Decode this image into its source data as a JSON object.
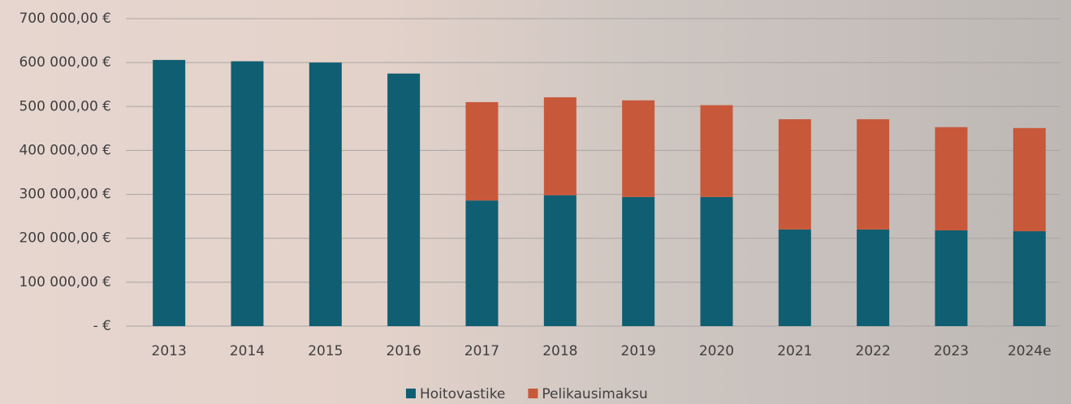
{
  "chart_data": {
    "type": "stacked-bar",
    "categories": [
      "2013",
      "2014",
      "2015",
      "2016",
      "2017",
      "2018",
      "2019",
      "2020",
      "2021",
      "2022",
      "2023",
      "2024e"
    ],
    "series": [
      {
        "name": "Hoitovastike",
        "color": "#0f5e72",
        "values": [
          606000,
          603000,
          600000,
          575000,
          286000,
          298000,
          294000,
          294000,
          220000,
          220000,
          218000,
          216000
        ]
      },
      {
        "name": "Pelikausimaksu",
        "color": "#c8583a",
        "values": [
          null,
          null,
          null,
          null,
          224000,
          223000,
          220000,
          209000,
          251000,
          251000,
          235000,
          235000
        ]
      }
    ],
    "ylim": [
      0,
      700000
    ],
    "yticks": [
      {
        "value": 0,
        "label": "-  €"
      },
      {
        "value": 100000,
        "label": "100 000,00 €"
      },
      {
        "value": 200000,
        "label": "200 000,00 €"
      },
      {
        "value": 300000,
        "label": "300 000,00 €"
      },
      {
        "value": 400000,
        "label": "400 000,00 €"
      },
      {
        "value": 500000,
        "label": "500 000,00 €"
      },
      {
        "value": 600000,
        "label": "600 000,00 €"
      },
      {
        "value": 700000,
        "label": "700 000,00 €"
      }
    ],
    "grid": true,
    "legend": "bottom"
  }
}
